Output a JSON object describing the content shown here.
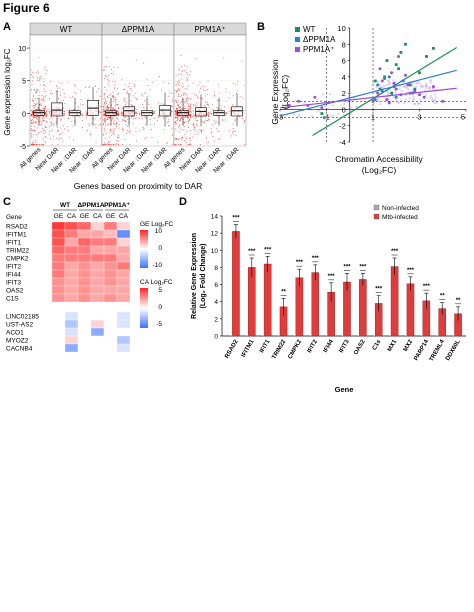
{
  "figure_title": "Figure 6",
  "panels": {
    "a": {
      "letter": "A",
      "strips": [
        "WT",
        "ΔPPM1A",
        "PPM1A⁺"
      ],
      "ylabel": "Gene expression log₂FC",
      "xlabel": "Genes based on proximity to DAR",
      "category_labels": [
        "All genes",
        "Near DAR",
        "Near ↓DAR",
        "Near ↑DAR"
      ],
      "y_ticks": [
        "-5",
        "0",
        "5",
        "10"
      ]
    },
    "b": {
      "letter": "B",
      "legend": [
        "WT",
        "ΔPPM1A",
        "PPM1A⁺"
      ],
      "xlabel_line1": "Chromatin Accessibility",
      "xlabel_line2": "(Log₂FC)",
      "ylabel_line1": "Gene Expression",
      "ylabel_line2": "(Log₂FC)",
      "x_ticks": [
        "-3",
        "-1",
        "1",
        "3",
        "5"
      ],
      "y_ticks": [
        "10",
        "8",
        "6",
        "4",
        "2",
        "0",
        "-2",
        "-4"
      ]
    },
    "c": {
      "letter": "C",
      "gene_header": "Gene",
      "groups": [
        "WT",
        "ΔPPM1A",
        "PPM1A⁺"
      ],
      "subcols": [
        "GE",
        "CA",
        "GE",
        "CA",
        "GE",
        "CA"
      ],
      "genes_top": [
        "RSAD2",
        "IFITM1",
        "IFIT1",
        "TRIM22",
        "CMPK2",
        "IFIT2",
        "IFI44",
        "IFIT3",
        "OAS2",
        "C1S"
      ],
      "genes_bottom": [
        "LINC02185",
        "UST-AS2",
        "ACO1",
        "MYOZ2",
        "CACNB4"
      ],
      "legend_ge_title": "GE Log₂FC",
      "legend_ge_ticks": [
        "10",
        "0",
        "-10"
      ],
      "legend_ca_title": "CA Log₂FC",
      "legend_ca_ticks": [
        "5",
        "0",
        "-5"
      ]
    },
    "d": {
      "letter": "D",
      "legend": [
        "Non-infected",
        "Mtb-infected"
      ],
      "ylabel_line1": "Relative Gene Expression",
      "ylabel_line2": "(Log₂ Fold Change)",
      "xlabel": "Gene",
      "y_ticks": [
        "0",
        "2",
        "4",
        "6",
        "8",
        "10",
        "12",
        "14"
      ]
    }
  },
  "chart_data": [
    {
      "type": "box",
      "panel": "A",
      "facets": [
        "WT",
        "ΔPPM1A",
        "PPM1A⁺"
      ],
      "categories": [
        "All genes",
        "Near DAR",
        "Near ↓DAR",
        "Near ↑DAR"
      ],
      "ylabel": "Gene expression log₂FC",
      "xlabel": "Genes based on proximity to DAR",
      "ylim": [
        -5,
        12
      ],
      "medians": [
        [
          0.1,
          0.5,
          0.1,
          0.8
        ],
        [
          0.1,
          0.4,
          0.1,
          0.5
        ],
        [
          0.1,
          0.3,
          0.1,
          0.4
        ]
      ],
      "q1": [
        [
          -0.3,
          -0.4,
          -0.3,
          -0.3
        ],
        [
          -0.3,
          -0.4,
          -0.3,
          -0.4
        ],
        [
          -0.3,
          -0.4,
          -0.3,
          -0.4
        ]
      ],
      "q3": [
        [
          0.4,
          1.6,
          0.4,
          2.0
        ],
        [
          0.4,
          1.0,
          0.4,
          1.2
        ],
        [
          0.4,
          0.9,
          0.4,
          1.0
        ]
      ],
      "colors": {
        "points": "#e8251f",
        "box": "#000000"
      }
    },
    {
      "type": "scatter",
      "panel": "B",
      "xlabel": "Chromatin Accessibility (Log₂FC)",
      "ylabel": "Gene Expression (Log₂FC)",
      "xlim": [
        -3,
        5
      ],
      "ylim": [
        -4,
        10
      ],
      "series": [
        {
          "name": "WT",
          "color": "#1a8f5a",
          "x": [
            1.3,
            1.6,
            2.0,
            2.2,
            2.6,
            3.0,
            3.3,
            1.8,
            2.4,
            -1.2,
            1.1,
            2.8,
            1.5,
            3.6,
            2.1
          ],
          "y": [
            2.5,
            6.0,
            5.5,
            7.0,
            3.0,
            4.5,
            6.5,
            2.0,
            8.0,
            -0.5,
            3.5,
            2.5,
            4.0,
            7.5,
            5.0
          ],
          "fit": [
            [
              -1.6,
              -3.2
            ],
            [
              4.6,
              7.6
            ]
          ]
        },
        {
          "name": "ΔPPM1A",
          "color": "#2a7fd4",
          "x": [
            1.2,
            1.4,
            1.7,
            2.0,
            2.3,
            2.7,
            1.1,
            1.9,
            -1.1,
            1.5
          ],
          "y": [
            3.0,
            2.2,
            4.0,
            1.5,
            3.5,
            2.0,
            1.2,
            2.8,
            -1.0,
            3.8
          ],
          "fit": [
            [
              -3.0,
              -0.8
            ],
            [
              4.6,
              4.8
            ]
          ]
        },
        {
          "name": "PPM1A⁺",
          "color": "#9b4fd6",
          "x": [
            -2.2,
            -1.8,
            -1.5,
            -1.2,
            1.2,
            1.4,
            1.6,
            1.8,
            2.0,
            2.2,
            2.5,
            2.8,
            3.2,
            3.6,
            4.0,
            1.3,
            1.7,
            2.1,
            2.6,
            -2.6,
            1.0,
            1.9,
            2.4,
            3.0
          ],
          "y": [
            1.0,
            0.5,
            1.5,
            0.2,
            2.0,
            3.5,
            1.2,
            4.5,
            2.5,
            1.8,
            3.0,
            2.2,
            1.5,
            2.8,
            1.0,
            5.0,
            0.8,
            6.5,
            2.0,
            0.5,
            1.0,
            3.2,
            4.2,
            1.8
          ],
          "fit": [
            [
              -3.0,
              0.2
            ],
            [
              4.6,
              2.6
            ]
          ]
        }
      ]
    },
    {
      "type": "heatmap",
      "panel": "C",
      "columns": [
        "WT GE",
        "WT CA",
        "ΔPPM1A GE",
        "ΔPPM1A CA",
        "PPM1A⁺ GE",
        "PPM1A⁺ CA"
      ],
      "rows": [
        "RSAD2",
        "IFITM1",
        "IFIT1",
        "TRIM22",
        "CMPK2",
        "IFIT2",
        "IFI44",
        "IFIT3",
        "OAS2",
        "C1S",
        "LINC02185",
        "UST-AS2",
        "ACO1",
        "MYOZ2",
        "CACNB4"
      ],
      "values": [
        [
          9,
          4,
          7,
          1,
          6,
          1
        ],
        [
          8,
          3,
          4,
          2,
          3,
          -4
        ],
        [
          8,
          2,
          7,
          3,
          6,
          1
        ],
        [
          7,
          3,
          6,
          2,
          4,
          2
        ],
        [
          6,
          3,
          6,
          3,
          6,
          2
        ],
        [
          6,
          2,
          5,
          2,
          5,
          3
        ],
        [
          6,
          2,
          5,
          2,
          5,
          2
        ],
        [
          5,
          2,
          5,
          2,
          5,
          2
        ],
        [
          5,
          2,
          5,
          2,
          4,
          2
        ],
        [
          5,
          2,
          5,
          2,
          5,
          2
        ],
        [
          0,
          -1,
          0,
          0,
          0,
          -1
        ],
        [
          0,
          -2,
          0,
          1,
          0,
          -1
        ],
        [
          0,
          -1,
          0,
          -3,
          0,
          0
        ],
        [
          0,
          1,
          0,
          0,
          0,
          -2
        ],
        [
          0,
          -3,
          0,
          0,
          0,
          -1
        ]
      ],
      "ge_range": [
        -10,
        10
      ],
      "ca_range": [
        -5,
        5
      ]
    },
    {
      "type": "bar",
      "panel": "D",
      "categories": [
        "RSAD2",
        "IFITM1",
        "IFIT1",
        "TRIM22",
        "CMPK2",
        "IFIT2",
        "IFI44",
        "IFIT3",
        "OAS2",
        "C1s",
        "MX1",
        "MX2",
        "PARP14",
        "TREML4",
        "DDX60L"
      ],
      "series": [
        {
          "name": "Non-infected",
          "color": "#aaaaaa",
          "values": [
            0,
            0,
            0,
            0,
            0,
            0,
            0,
            0,
            0,
            0,
            0,
            0,
            0,
            0,
            0
          ]
        },
        {
          "name": "Mtb-infected",
          "color": "#e03c3c",
          "values": [
            12.2,
            8.0,
            8.4,
            3.4,
            6.8,
            7.4,
            5.1,
            6.3,
            6.6,
            3.8,
            8.1,
            6.1,
            4.1,
            3.2,
            2.6
          ]
        }
      ],
      "errors": [
        0.8,
        1.1,
        0.9,
        1.0,
        1.0,
        0.9,
        1.1,
        1.0,
        0.7,
        0.9,
        1.0,
        0.8,
        0.9,
        0.7,
        0.8
      ],
      "significance": [
        "***",
        "***",
        "***",
        "**",
        "***",
        "***",
        "***",
        "***",
        "***",
        "***",
        "***",
        "***",
        "***",
        "**",
        "**"
      ],
      "ylabel": "Relative Gene Expression (Log₂ Fold Change)",
      "xlabel": "Gene",
      "ylim": [
        0,
        14
      ]
    }
  ]
}
